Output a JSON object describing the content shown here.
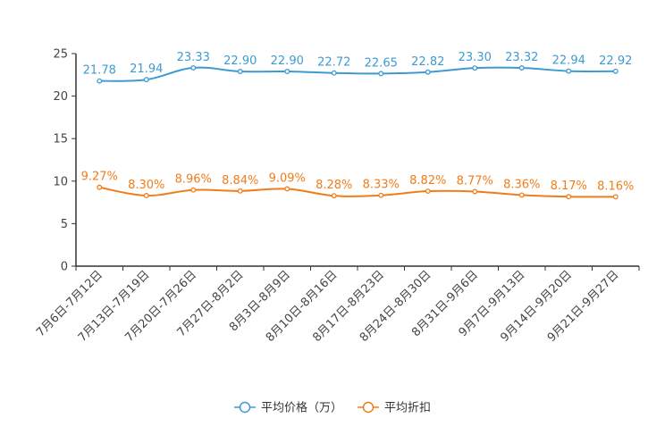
{
  "chart_data": {
    "type": "line",
    "title": "",
    "xlabel": "",
    "ylabel": "",
    "ylim": [
      0,
      25
    ],
    "yticks": [
      0,
      5,
      10,
      15,
      20,
      25
    ],
    "grid": false,
    "legend_position": "bottom-center",
    "categories": [
      "7月6日-7月12日",
      "7月13日-7月19日",
      "7月20日-7月26日",
      "7月27日-8月2日",
      "8月3日-8月9日",
      "8月10日-8月16日",
      "8月17日-8月23日",
      "8月24日-8月30日",
      "8月31日-9月6日",
      "9月7日-9月13日",
      "9月14日-9月20日",
      "9月21日-9月27日"
    ],
    "series": [
      {
        "name": "平均价格（万）",
        "color": "#3d9bd1",
        "values": [
          21.78,
          21.94,
          23.33,
          22.9,
          22.9,
          22.72,
          22.65,
          22.82,
          23.3,
          23.32,
          22.94,
          22.92
        ],
        "labels": [
          "21.78",
          "21.94",
          "23.33",
          "22.90",
          "22.90",
          "22.72",
          "22.65",
          "22.82",
          "23.30",
          "23.32",
          "22.94",
          "22.92"
        ]
      },
      {
        "name": "平均折扣",
        "color": "#f07d1a",
        "values": [
          9.27,
          8.3,
          8.96,
          8.84,
          9.09,
          8.28,
          8.33,
          8.82,
          8.77,
          8.36,
          8.17,
          8.16
        ],
        "labels": [
          "9.27%",
          "8.30%",
          "8.96%",
          "8.84%",
          "9.09%",
          "8.28%",
          "8.33%",
          "8.82%",
          "8.77%",
          "8.36%",
          "8.17%",
          "8.16%"
        ]
      }
    ]
  }
}
